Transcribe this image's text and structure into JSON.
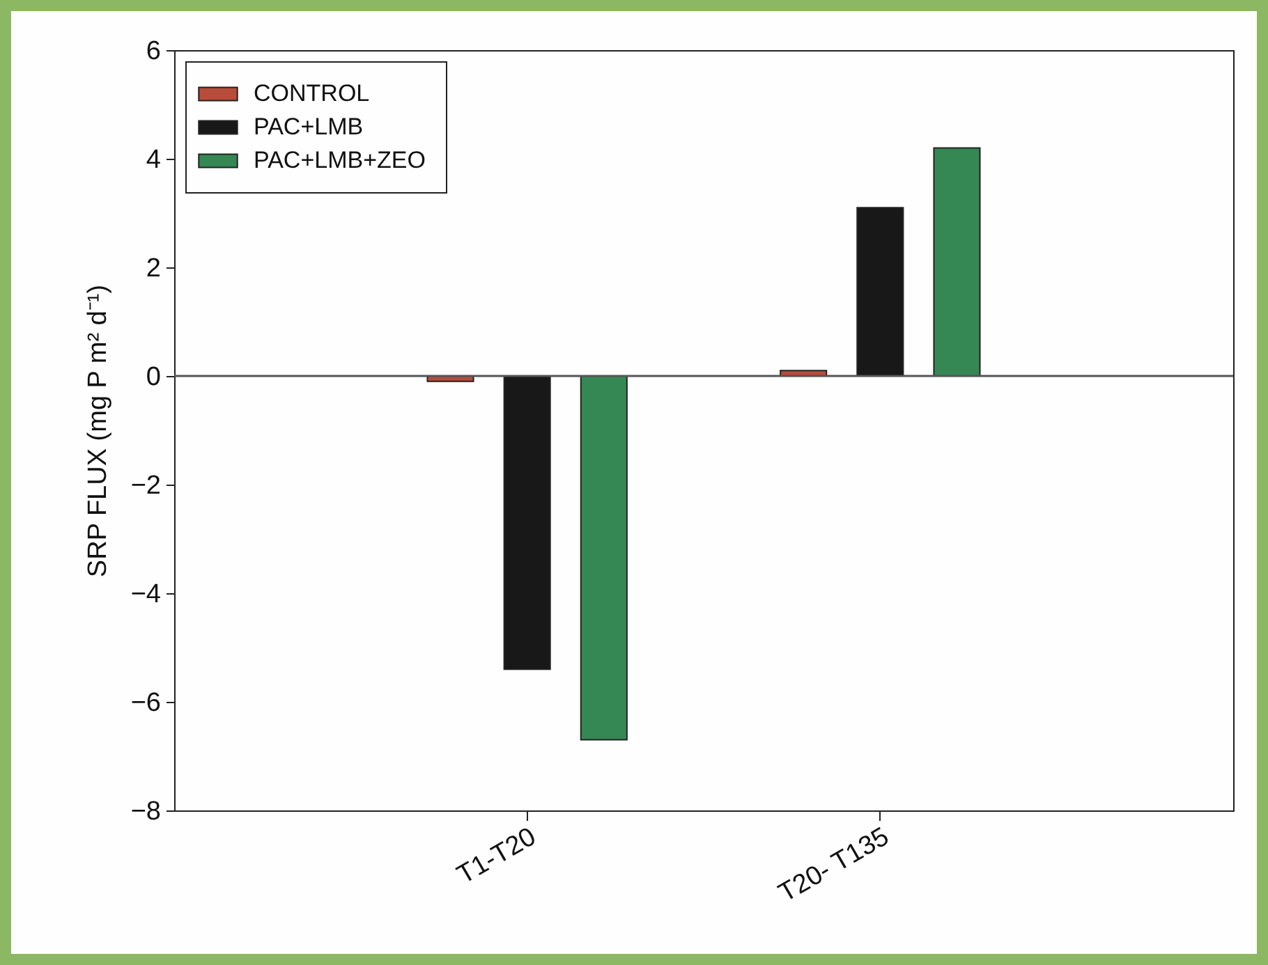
{
  "chart_data": {
    "type": "bar",
    "ylabel": "SRP FLUX (mg P m² d⁻¹)",
    "categories": [
      "T1-T20",
      "T20- T135"
    ],
    "series": [
      {
        "name": "CONTROL",
        "color": "#b84c3a",
        "values": [
          -0.1,
          0.1
        ]
      },
      {
        "name": "PAC+LMB",
        "color": "#181818",
        "values": [
          -5.4,
          3.1
        ]
      },
      {
        "name": "PAC+LMB+ZEO",
        "color": "#358853",
        "values": [
          -6.7,
          4.2
        ]
      }
    ],
    "ylim": [
      -8,
      6
    ],
    "yticks": [
      -8,
      -6,
      -4,
      -2,
      0,
      2,
      4,
      6
    ],
    "ref_lines": [
      {
        "axis": "y",
        "value": 0,
        "color": "#555555"
      }
    ],
    "grid": false,
    "legend": "top left"
  }
}
